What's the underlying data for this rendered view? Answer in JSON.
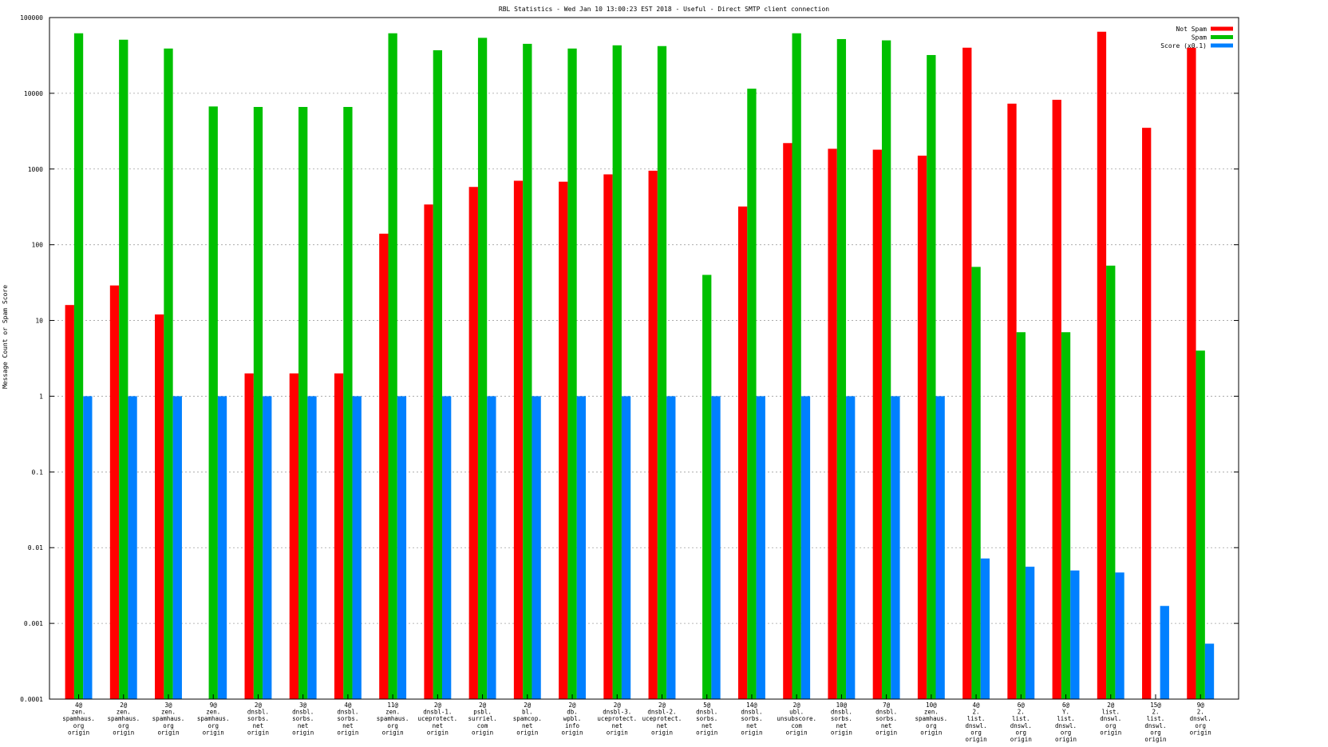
{
  "chart_data": {
    "type": "bar",
    "title": "RBL Statistics - Wed Jan 10 13:00:23 EST 2018 - Useful - Direct SMTP client connection",
    "ylabel": "Message Count or Spam Score",
    "xlabel": "",
    "yscale": "log",
    "ylim": [
      0.0001,
      100000
    ],
    "yticks": [
      "0.0001",
      "0.001",
      "0.01",
      "0.1",
      "1",
      "10",
      "100",
      "1000",
      "10000",
      "100000"
    ],
    "grid": true,
    "legend_position": "top-right",
    "categories": [
      [
        "4@",
        "zen.",
        "spamhaus.",
        "org",
        "origin"
      ],
      [
        "2@",
        "zen.",
        "spamhaus.",
        "org",
        "origin"
      ],
      [
        "3@",
        "zen.",
        "spamhaus.",
        "org",
        "origin"
      ],
      [
        "9@",
        "zen.",
        "spamhaus.",
        "org",
        "origin"
      ],
      [
        "2@",
        "dnsbl.",
        "sorbs.",
        "net",
        "origin"
      ],
      [
        "3@",
        "dnsbl.",
        "sorbs.",
        "net",
        "origin"
      ],
      [
        "4@",
        "dnsbl.",
        "sorbs.",
        "net",
        "origin"
      ],
      [
        "11@",
        "zen.",
        "spamhaus.",
        "org",
        "origin"
      ],
      [
        "2@",
        "dnsbl-1.",
        "uceprotect.",
        "net",
        "origin"
      ],
      [
        "2@",
        "psbl.",
        "surriel.",
        "com",
        "origin"
      ],
      [
        "2@",
        "bl.",
        "spamcop.",
        "net",
        "origin"
      ],
      [
        "2@",
        "db.",
        "wpbl.",
        "info",
        "origin"
      ],
      [
        "2@",
        "dnsbl-3.",
        "uceprotect.",
        "net",
        "origin"
      ],
      [
        "2@",
        "dnsbl-2.",
        "uceprotect.",
        "net",
        "origin"
      ],
      [
        "5@",
        "dnsbl.",
        "sorbs.",
        "net",
        "origin"
      ],
      [
        "14@",
        "dnsbl.",
        "sorbs.",
        "net",
        "origin"
      ],
      [
        "2@",
        "ubl.",
        "unsubscore.",
        "com",
        "origin"
      ],
      [
        "10@",
        "dnsbl.",
        "sorbs.",
        "net",
        "origin"
      ],
      [
        "7@",
        "dnsbl.",
        "sorbs.",
        "net",
        "origin"
      ],
      [
        "10@",
        "zen.",
        "spamhaus.",
        "org",
        "origin"
      ],
      [
        "4@",
        "2.",
        "list.",
        "dnswl.",
        "org",
        "origin"
      ],
      [
        "6@",
        "2.",
        "list.",
        "dnswl.",
        "org",
        "origin"
      ],
      [
        "6@",
        "Y.",
        "list.",
        "dnswl.",
        "org",
        "origin"
      ],
      [
        "2@",
        "list.",
        "dnswl.",
        "org",
        "origin"
      ],
      [
        "15@",
        "2.",
        "list.",
        "dnswl.",
        "org",
        "origin"
      ],
      [
        "9@",
        "2.",
        "dnswl.",
        "org",
        "origin"
      ]
    ],
    "series": [
      {
        "name": "Not Spam",
        "color": "#ff0000",
        "values": [
          16,
          29,
          12,
          null,
          2,
          2,
          2,
          140,
          340,
          580,
          700,
          680,
          850,
          950,
          null,
          320,
          2200,
          1850,
          1800,
          1500,
          40000,
          7300,
          8200,
          65000,
          3500,
          40000
        ]
      },
      {
        "name": "Spam",
        "color": "#00c000",
        "values": [
          62000,
          51000,
          39000,
          6700,
          6600,
          6600,
          6600,
          62000,
          37000,
          54000,
          45000,
          39000,
          43000,
          42000,
          40,
          11500,
          62000,
          52000,
          50000,
          32000,
          51,
          7,
          7,
          53,
          null,
          4
        ]
      },
      {
        "name": "Score (x0.1)",
        "color": "#0080ff",
        "values": [
          1,
          1,
          1,
          1,
          1,
          1,
          1,
          1,
          1,
          1,
          1,
          1,
          1,
          1,
          1,
          1,
          1,
          1,
          1,
          1,
          0.0072,
          0.0056,
          0.005,
          0.0047,
          0.0017,
          0.00054
        ]
      }
    ]
  }
}
